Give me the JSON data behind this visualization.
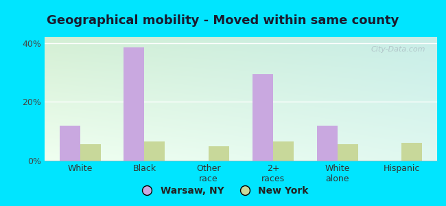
{
  "title": "Geographical mobility - Moved within same county",
  "categories": [
    "White",
    "Black",
    "Other\nrace",
    "2+\nraces",
    "White\nalone",
    "Hispanic"
  ],
  "warsaw_values": [
    12.0,
    38.5,
    0.0,
    29.5,
    12.0,
    0.0
  ],
  "newyork_values": [
    5.5,
    6.5,
    5.0,
    6.5,
    5.5,
    6.0
  ],
  "warsaw_color": "#c9a8e0",
  "newyork_color": "#c8d89a",
  "ylim": [
    0,
    42
  ],
  "yticks": [
    0,
    20,
    40
  ],
  "ytick_labels": [
    "0%",
    "20%",
    "40%"
  ],
  "bar_width": 0.32,
  "outer_bg": "#00e5ff",
  "bg_top": "#d4efd4",
  "bg_bottom": "#eafaea",
  "bg_right": "#c8eee8",
  "legend_warsaw": "Warsaw, NY",
  "legend_newyork": "New York",
  "title_fontsize": 13,
  "tick_fontsize": 9,
  "watermark": "City-Data.com"
}
